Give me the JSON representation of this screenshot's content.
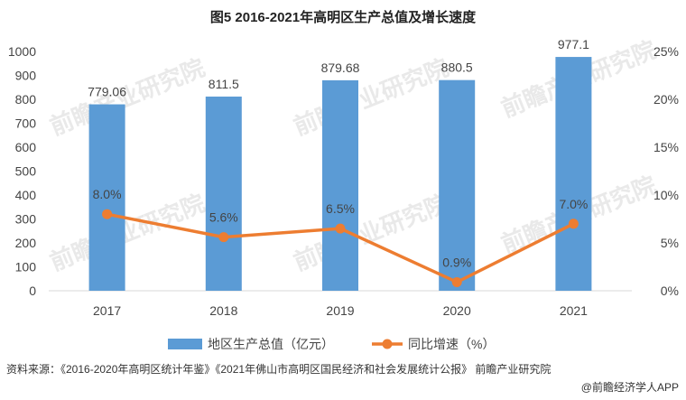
{
  "chart_data": {
    "type": "bar",
    "title": "图5 2016-2021年高明区生产总值及增长速度",
    "categories": [
      "2017",
      "2018",
      "2019",
      "2020",
      "2021"
    ],
    "series": [
      {
        "name": "地区生产总值（亿元）",
        "type": "bar",
        "axis": "left",
        "values": [
          779.06,
          811.5,
          879.68,
          880.5,
          977.1
        ],
        "labels": [
          "779.06",
          "811.5",
          "879.68",
          "880.5",
          "977.1"
        ]
      },
      {
        "name": "同比增速（%）",
        "type": "line",
        "axis": "right",
        "values": [
          8.0,
          5.6,
          6.5,
          0.9,
          7.0
        ],
        "labels": [
          "8.0%",
          "5.6%",
          "6.5%",
          "0.9%",
          "7.0%"
        ]
      }
    ],
    "y_left": {
      "min": 0,
      "max": 1000,
      "step": 100,
      "ticks": [
        "0",
        "100",
        "200",
        "300",
        "400",
        "500",
        "600",
        "700",
        "800",
        "900",
        "1000"
      ]
    },
    "y_right": {
      "min": 0,
      "max": 25,
      "step": 5,
      "ticks": [
        "0%",
        "5%",
        "10%",
        "15%",
        "20%",
        "25%"
      ]
    },
    "grid": false,
    "legend": "bottom",
    "colors": {
      "bar": "#5b9bd5",
      "line": "#ed7d31"
    }
  },
  "source_text": "资料来源：《2016-2020年高明区统计年鉴》《2021年佛山市高明区国民经济和社会发展统计公报》 前瞻产业研究院",
  "brand_text": "@前瞻经济学人APP",
  "watermark_text": "前瞻产业研究院"
}
